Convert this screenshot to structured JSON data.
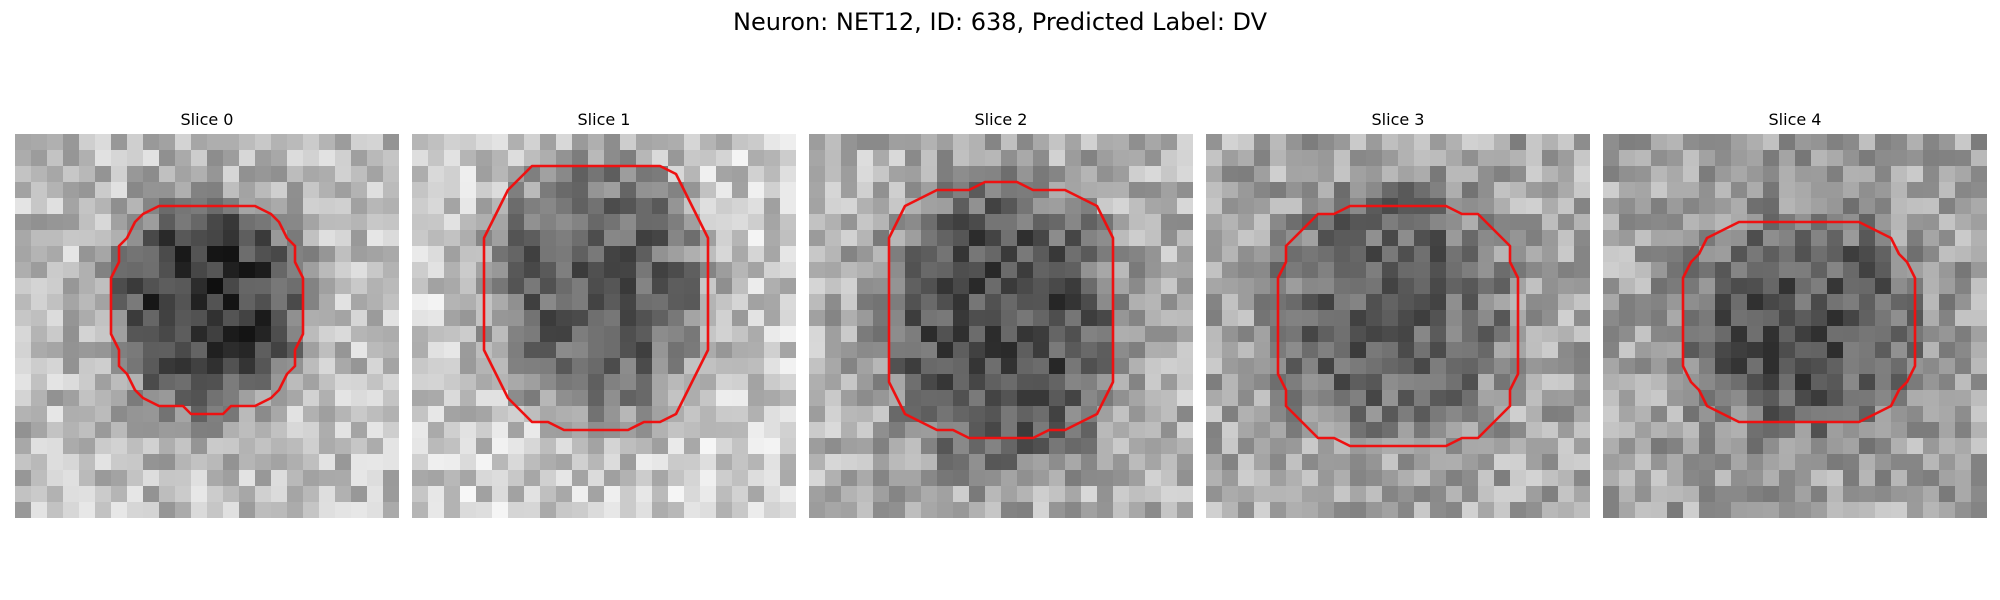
{
  "figure": {
    "title": "Neuron: NET12, ID: 638, Predicted Label: DV"
  },
  "panels": [
    {
      "title": "Slice 0"
    },
    {
      "title": "Slice 1"
    },
    {
      "title": "Slice 2"
    },
    {
      "title": "Slice 3"
    },
    {
      "title": "Slice 4"
    }
  ],
  "colors": {
    "contour": "#ee1111",
    "background": "#ffffff"
  }
}
